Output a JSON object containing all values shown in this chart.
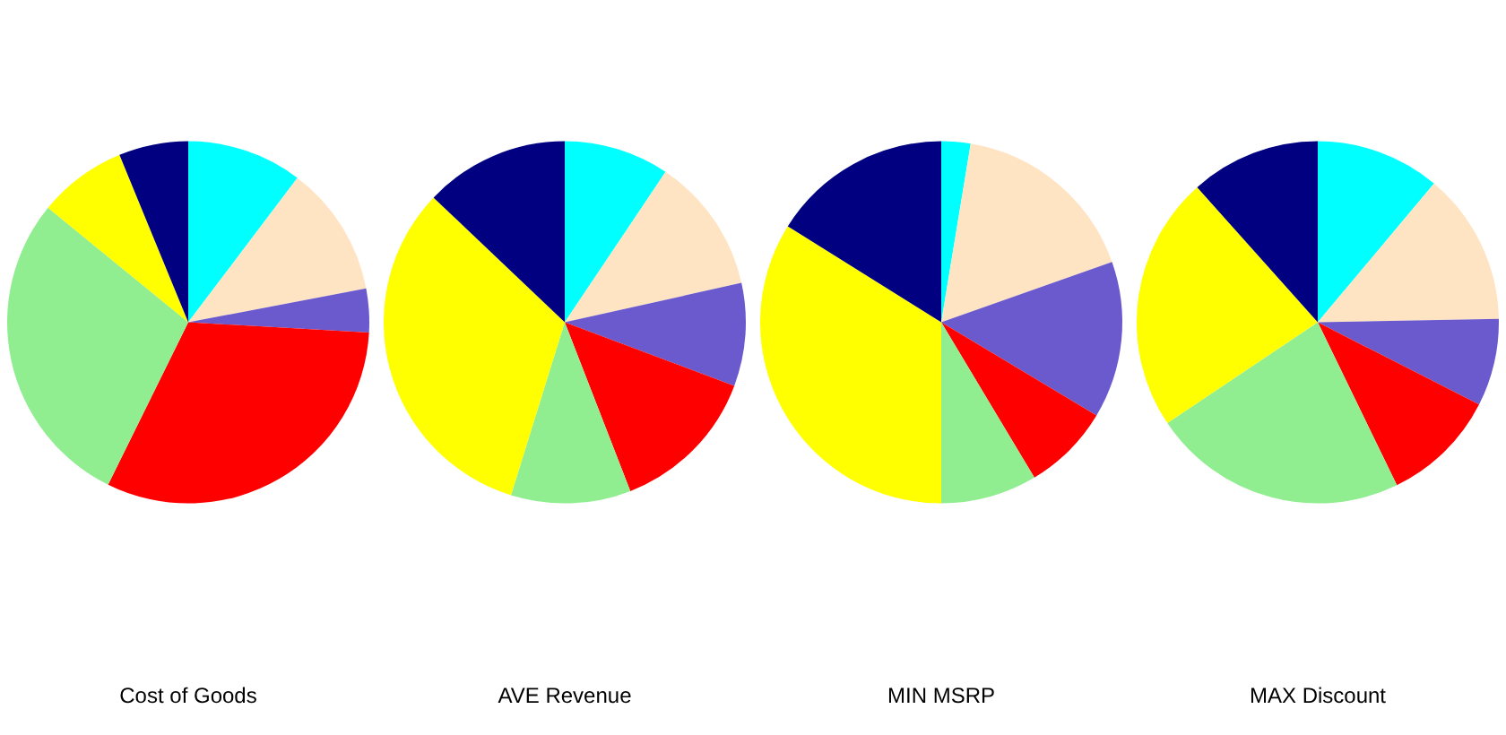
{
  "chart_data": [
    {
      "type": "pie",
      "title": "Cost of Goods",
      "categories": [
        null,
        null,
        null,
        null,
        null,
        null,
        null
      ],
      "values": [
        10.3,
        11.7,
        3.9,
        31.4,
        28.6,
        7.9,
        6.2
      ],
      "colors": [
        "#00ffff",
        "#ffe4c4",
        "#6a5acd",
        "#ff0000",
        "#90ee90",
        "#ffff00",
        "#000080"
      ],
      "legend": false
    },
    {
      "type": "pie",
      "title": "AVE Revenue",
      "categories": [
        null,
        null,
        null,
        null,
        null,
        null,
        null
      ],
      "values": [
        9.4,
        12.1,
        9.2,
        13.4,
        10.7,
        32.3,
        12.9
      ],
      "colors": [
        "#00ffff",
        "#ffe4c4",
        "#6a5acd",
        "#ff0000",
        "#90ee90",
        "#ffff00",
        "#000080"
      ],
      "legend": false
    },
    {
      "type": "pie",
      "title": "MIN MSRP",
      "categories": [
        null,
        null,
        null,
        null,
        null,
        null,
        null
      ],
      "values": [
        2.6,
        17.0,
        14.0,
        7.8,
        8.6,
        33.9,
        16.1
      ],
      "colors": [
        "#00ffff",
        "#ffe4c4",
        "#6a5acd",
        "#ff0000",
        "#90ee90",
        "#ffff00",
        "#000080"
      ],
      "legend": false
    },
    {
      "type": "pie",
      "title": "MAX Discount",
      "categories": [
        null,
        null,
        null,
        null,
        null,
        null,
        null
      ],
      "values": [
        11.1,
        13.6,
        7.8,
        10.3,
        22.8,
        22.8,
        11.6
      ],
      "colors": [
        "#00ffff",
        "#ffe4c4",
        "#6a5acd",
        "#ff0000",
        "#90ee90",
        "#ffff00",
        "#000080"
      ],
      "legend": false
    }
  ]
}
